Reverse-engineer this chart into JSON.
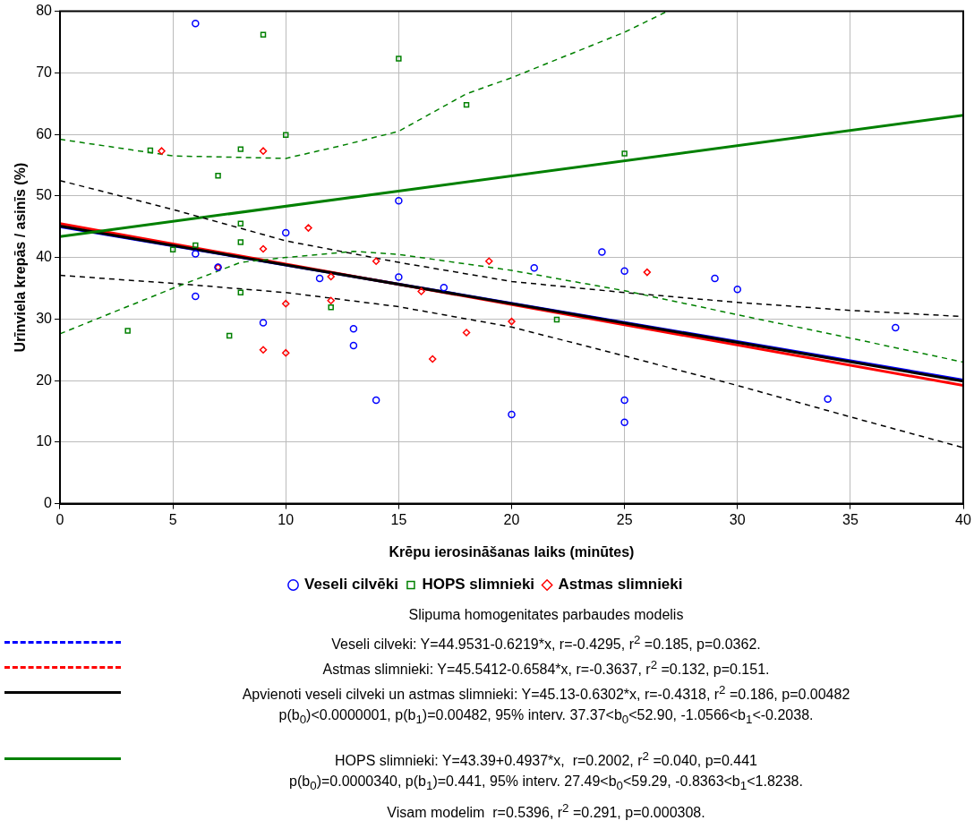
{
  "chart_data": {
    "type": "scatter",
    "xlabel": "Krēpu ierosināšanas laiks (minūtes)",
    "ylabel": "Urīnviela krepās / asinīs (%)",
    "xlim": [
      0,
      40
    ],
    "ylim": [
      0,
      80
    ],
    "xticks": [
      0,
      5,
      10,
      15,
      20,
      25,
      30,
      35,
      40
    ],
    "yticks": [
      0,
      10,
      20,
      30,
      40,
      50,
      60,
      70,
      80
    ],
    "grid": true,
    "legend": "bottom",
    "series": [
      {
        "name": "Veseli cilvēki",
        "type": "scatter",
        "marker": "circle",
        "color": "#0000ff",
        "x": [
          6,
          10,
          6,
          6,
          11.5,
          9,
          13,
          13,
          7,
          15,
          15,
          17,
          14,
          20,
          21,
          24,
          25,
          25,
          25,
          29,
          30,
          37,
          34
        ],
        "values": [
          78,
          44,
          40.6,
          33.7,
          36.6,
          29.4,
          28.4,
          25.7,
          38.4,
          49.2,
          36.8,
          35.1,
          16.8,
          14.5,
          38.3,
          40.9,
          37.8,
          16.8,
          13.2,
          36.6,
          34.8,
          28.6,
          17
        ]
      },
      {
        "name": "HOPS slimnieki",
        "type": "scatter",
        "marker": "square",
        "color": "#008000",
        "x": [
          4,
          9,
          10,
          8,
          7,
          8,
          8,
          6,
          5,
          15,
          18,
          25,
          12,
          3,
          7.5,
          8,
          22
        ],
        "values": [
          57.4,
          76.2,
          59.9,
          57.6,
          53.3,
          45.5,
          42.5,
          42,
          41.3,
          72.3,
          64.8,
          56.9,
          31.9,
          28.1,
          27.3,
          34.3,
          29.9
        ]
      },
      {
        "name": "Astmas slimnieki",
        "type": "scatter",
        "marker": "diamond",
        "color": "#ff0000",
        "x": [
          4.5,
          9,
          11,
          9,
          7,
          12,
          10,
          12,
          9,
          10,
          14,
          19,
          16,
          20,
          18,
          16.5,
          26
        ],
        "values": [
          57.3,
          57.3,
          44.8,
          41.4,
          38.4,
          36.9,
          32.5,
          33,
          25,
          24.5,
          39.4,
          39.4,
          34.5,
          29.6,
          27.8,
          23.5,
          37.6
        ]
      },
      {
        "type": "line",
        "marker": "none",
        "line_style": "solid",
        "color": "#0000ff",
        "x": [
          0,
          40
        ],
        "values": [
          45,
          20.1
        ]
      },
      {
        "type": "line",
        "marker": "none",
        "line_style": "solid",
        "color": "#ff0000",
        "x": [
          0,
          40
        ],
        "values": [
          45.5,
          19.2
        ]
      },
      {
        "type": "line",
        "marker": "none",
        "line_style": "solid",
        "color": "#000000",
        "x": [
          0,
          40
        ],
        "values": [
          45.1,
          19.9
        ]
      },
      {
        "type": "line",
        "marker": "none",
        "line_style": "solid",
        "color": "#008000",
        "x": [
          0,
          40
        ],
        "values": [
          43.4,
          63.1
        ]
      },
      {
        "type": "line",
        "marker": "none",
        "line_style": "dashed",
        "color": "#000000",
        "x": [
          0,
          5,
          10,
          15,
          20,
          25,
          30,
          35,
          40
        ],
        "values": [
          52.5,
          47.8,
          42.7,
          39.2,
          36.1,
          34.3,
          32.7,
          31.4,
          30.4
        ]
      },
      {
        "type": "line",
        "marker": "none",
        "line_style": "dashed",
        "color": "#000000",
        "x": [
          0,
          5,
          10,
          12,
          15,
          20,
          25,
          30,
          35,
          40
        ],
        "values": [
          37.1,
          35.8,
          34.3,
          33.4,
          32,
          28.7,
          24,
          19.2,
          14.1,
          9.1
        ]
      },
      {
        "type": "line",
        "marker": "none",
        "line_style": "dashed",
        "color": "#008000",
        "x": [
          0,
          5,
          10,
          12.5,
          15,
          18,
          20,
          25,
          26.9
        ],
        "values": [
          59.2,
          56.5,
          56.1,
          58.2,
          60.5,
          66.6,
          69.2,
          76.6,
          80
        ]
      },
      {
        "type": "line",
        "marker": "none",
        "line_style": "dashed",
        "color": "#008000",
        "x": [
          0,
          5,
          8,
          10,
          13,
          15,
          20,
          25,
          30,
          35,
          40
        ],
        "values": [
          27.6,
          35,
          39.2,
          40,
          41,
          40.5,
          37.9,
          34.6,
          30.7,
          26.9,
          23
        ]
      }
    ],
    "annotations": [
      "Slipuma homogenitates parbaudes modelis",
      "Veseli cilveki: Y=44.9531-0.6219*x, r=-0.4295, r$^{2}$ =0.185, p=0.0362.",
      "Astmas slimnieki: Y=45.5412-0.6584*x, r=-0.3637, r$^{2}$ =0.132, p=0.151.",
      "Apvienoti veseli cilveki un astmas slimnieki: Y=45.13-0.6302*x, r=-0.4318, r$^{2}$ =0.186, p=0.00482",
      "p(b$_{0}$)<0.0000001, p(b$_{1}$)=0.00482, 95% interv. 37.37<b$_{0}$<52.90, -1.0566<b$_{1}$<-0.2038.",
      "HOPS slimnieki: Y=43.39+0.4937*x,  r=0.2002, r$^{2}$ =0.040, p=0.441",
      "p(b$_{0}$)=0.0000340, p(b$_{1}$)=0.441, 95% interv. 27.49<b$_{0}$<59.29, -0.8363<b$_{1}$<1.8238.",
      "Visam modelim  r=0.5396, r$^{2}$ =0.291, p=0.000308."
    ]
  }
}
